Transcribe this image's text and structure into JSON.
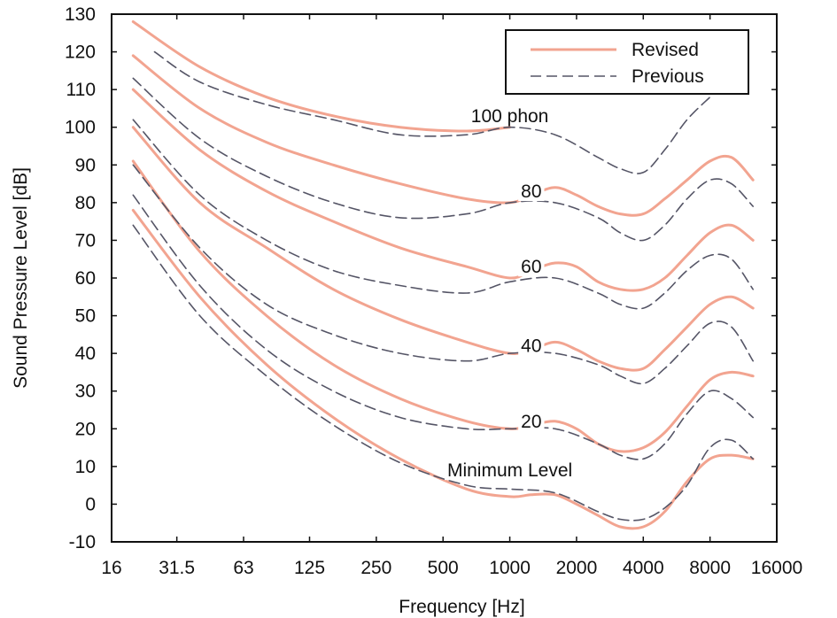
{
  "chart_data": {
    "type": "line",
    "title": "",
    "xlabel": "Frequency [Hz]",
    "ylabel": "Sound Pressure Level [dB]",
    "x_scale": "log2",
    "xlim": [
      16,
      16000
    ],
    "ylim": [
      -10,
      130
    ],
    "x_ticks": [
      "16",
      "31.5",
      "63",
      "125",
      "250",
      "500",
      "1000",
      "2000",
      "4000",
      "8000",
      "16000"
    ],
    "y_ticks": [
      "-10",
      "0",
      "10",
      "20",
      "30",
      "40",
      "50",
      "60",
      "70",
      "80",
      "90",
      "100",
      "110",
      "120",
      "130"
    ],
    "grid": false,
    "legend": {
      "placement": "top-right",
      "entries": [
        "Revised",
        "Previous"
      ]
    },
    "colors": {
      "revised": "#f2a490",
      "previous": "#555566"
    },
    "annotations": [
      {
        "text": "100 phon",
        "x": 1000,
        "y": 103
      },
      {
        "text": "80",
        "x": 1250,
        "y": 83
      },
      {
        "text": "60",
        "x": 1250,
        "y": 63
      },
      {
        "text": "40",
        "x": 1250,
        "y": 42
      },
      {
        "text": "20",
        "x": 1250,
        "y": 22
      },
      {
        "text": "Minimum Level",
        "x": 1000,
        "y": 9
      }
    ],
    "series": [
      {
        "name": "Revised",
        "style": "solid",
        "curves": [
          {
            "x": [
              20,
              40,
              80,
              160,
              320,
              640,
              1000,
              1250,
              1600,
              2000,
              2500,
              3150,
              4000,
              5000,
              6300,
              8000,
              10000,
              12500
            ],
            "y": [
              78,
              55,
              37,
              23,
              12,
              4,
              2,
              2.5,
              2.5,
              0,
              -3,
              -6,
              -6,
              -2,
              6,
              12,
              13,
              12
            ]
          },
          {
            "x": [
              20,
              40,
              80,
              160,
              320,
              640,
              1000,
              1250,
              1600,
              2000,
              2500,
              3150,
              4000,
              5000,
              6300,
              8000,
              10000,
              12500
            ],
            "y": [
              91,
              67,
              50,
              37,
              28,
              22,
              20,
              21,
              22,
              20,
              16,
              14,
              15,
              19,
              26,
              33,
              35,
              34
            ]
          },
          {
            "x": [
              20,
              40,
              80,
              160,
              320,
              640,
              1000,
              1250,
              1600,
              2000,
              2500,
              3150,
              4000,
              5000,
              6300,
              8000,
              10000,
              12500
            ],
            "y": [
              100,
              80,
              68,
              57,
              49,
              43,
              40,
              41,
              43,
              41,
              38,
              36,
              36,
              41,
              47,
              53,
              55,
              52
            ]
          },
          {
            "x": [
              20,
              40,
              80,
              160,
              320,
              640,
              1000,
              1250,
              1600,
              2000,
              2500,
              3150,
              4000,
              5000,
              6300,
              8000,
              10000,
              12500
            ],
            "y": [
              110,
              94,
              83,
              75,
              68,
              63,
              60,
              62,
              64,
              63,
              59,
              57,
              57,
              60,
              66,
              72,
              74,
              70
            ]
          },
          {
            "x": [
              20,
              40,
              80,
              160,
              320,
              640,
              1000,
              1250,
              1600,
              2000,
              2500,
              3150,
              4000,
              5000,
              6300,
              8000,
              10000,
              12500
            ],
            "y": [
              119,
              105,
              96,
              90,
              85,
              81,
              80,
              82,
              84,
              82,
              79,
              77,
              77,
              81,
              86,
              91,
              92,
              86
            ]
          },
          {
            "x": [
              20,
              40,
              80,
              160,
              320,
              640,
              1000
            ],
            "y": [
              128,
              116,
              108,
              103,
              100,
              99,
              100
            ]
          }
        ]
      },
      {
        "name": "Previous",
        "style": "dashed",
        "curves": [
          {
            "x": [
              20,
              40,
              80,
              160,
              320,
              640,
              1000,
              1600,
              2500,
              3150,
              4000,
              5000,
              6300,
              8000,
              10000,
              12500
            ],
            "y": [
              74,
              50,
              34,
              21,
              11,
              5,
              4,
              3,
              -2,
              -4,
              -4,
              -1,
              5,
              15,
              17,
              12
            ]
          },
          {
            "x": [
              20,
              40,
              80,
              160,
              320,
              640,
              1000,
              1600,
              2500,
              3150,
              4000,
              5000,
              6300,
              8000,
              10000,
              12500
            ],
            "y": [
              82,
              58,
              41,
              30,
              23,
              20,
              20,
              20,
              16,
              13,
              12,
              16,
              24,
              30,
              28,
              23
            ]
          },
          {
            "x": [
              20,
              40,
              80,
              160,
              320,
              640,
              1000,
              1600,
              2500,
              3150,
              4000,
              5000,
              6300,
              8000,
              10000,
              12500
            ],
            "y": [
              90,
              68,
              53,
              45,
              40,
              38,
              40,
              40,
              37,
              34,
              32,
              36,
              42,
              48,
              47,
              38
            ]
          },
          {
            "x": [
              20,
              40,
              80,
              160,
              320,
              640,
              1000,
              1600,
              2500,
              3150,
              4000,
              5000,
              6300,
              8000,
              10000,
              12500
            ],
            "y": [
              102,
              82,
              70,
              62,
              58,
              56,
              59,
              60,
              56,
              53,
              52,
              56,
              62,
              66,
              65,
              57
            ]
          },
          {
            "x": [
              20,
              40,
              80,
              160,
              320,
              640,
              1000,
              1600,
              2500,
              3150,
              4000,
              5000,
              6300,
              8000,
              10000,
              12500
            ],
            "y": [
              113,
              97,
              87,
              80,
              76,
              77,
              80,
              80,
              76,
              72,
              70,
              74,
              81,
              86,
              85,
              79
            ]
          },
          {
            "x": [
              25,
              40,
              80,
              160,
              320,
              640,
              1000,
              1600,
              2500,
              3150,
              4000,
              5000,
              6300,
              8000
            ],
            "y": [
              120,
              112,
              106,
              102,
              98,
              98,
              100,
              98,
              92,
              89,
              88,
              94,
              102,
              108
            ]
          }
        ]
      }
    ]
  }
}
